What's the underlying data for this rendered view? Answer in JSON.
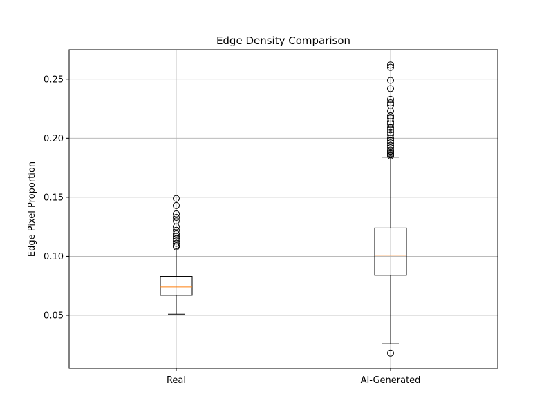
{
  "chart_data": {
    "type": "box",
    "title": "Edge Density Comparison",
    "xlabel": "",
    "ylabel": "Edge Pixel Proportion",
    "categories": [
      "Real",
      "AI-Generated"
    ],
    "ylim": [
      0.005,
      0.275
    ],
    "yticks": [
      0.05,
      0.1,
      0.15,
      0.2,
      0.25
    ],
    "ytick_labels": [
      "0.05",
      "0.10",
      "0.15",
      "0.20",
      "0.25"
    ],
    "grid": true,
    "colors": {
      "box": "#000000",
      "median": "#ff7f0e",
      "grid": "#b0b0b0",
      "outlier": "#000000"
    },
    "boxes": [
      {
        "category": "Real",
        "whisker_low": 0.051,
        "q1": 0.067,
        "median": 0.074,
        "q3": 0.083,
        "whisker_high": 0.107,
        "outliers": [
          0.149,
          0.143,
          0.136,
          0.133,
          0.13,
          0.125,
          0.122,
          0.119,
          0.117,
          0.115,
          0.113,
          0.111,
          0.109,
          0.108
        ]
      },
      {
        "category": "AI-Generated",
        "whisker_low": 0.026,
        "q1": 0.084,
        "median": 0.101,
        "q3": 0.124,
        "whisker_high": 0.184,
        "outliers": [
          0.018,
          0.262,
          0.26,
          0.249,
          0.242,
          0.233,
          0.23,
          0.228,
          0.223,
          0.219,
          0.217,
          0.214,
          0.212,
          0.209,
          0.207,
          0.205,
          0.203,
          0.2,
          0.198,
          0.196,
          0.194,
          0.192,
          0.19,
          0.189,
          0.188,
          0.187,
          0.186,
          0.185
        ]
      }
    ]
  }
}
